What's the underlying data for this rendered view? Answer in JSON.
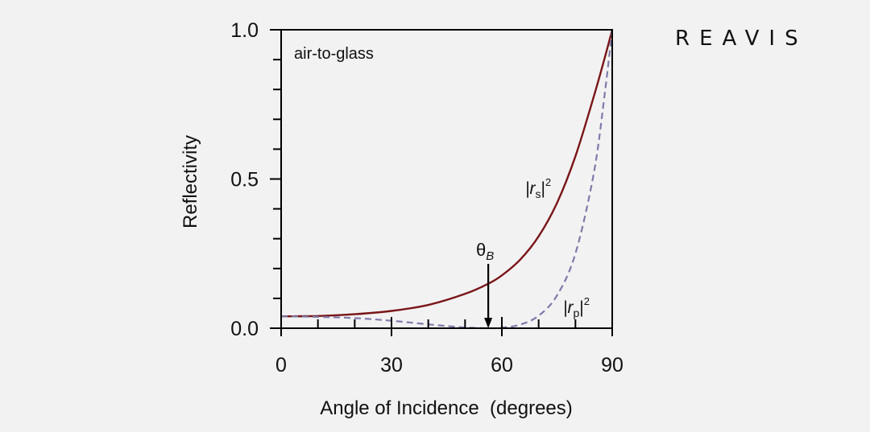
{
  "brand": {
    "name": "REAVIS"
  },
  "chart_data": {
    "type": "line",
    "title": "",
    "xlabel": "Angle of Incidence  (degrees)",
    "ylabel": "Reflectivity",
    "xlim": [
      0,
      90
    ],
    "ylim": [
      0,
      1
    ],
    "x_ticks": [
      0,
      30,
      60,
      90
    ],
    "x_tick_labels": [
      "0",
      "30",
      "60",
      "90"
    ],
    "y_ticks": [
      0,
      0.5,
      1
    ],
    "y_tick_labels": [
      "0.0",
      "0.5",
      "1.0"
    ],
    "grid": false,
    "annotation_text": "air-to-glass",
    "brewster_label": "θ",
    "brewster_subscript": "B",
    "brewster_angle": 56.3,
    "series": [
      {
        "name": "|rs|²",
        "label_main": "|r",
        "label_sub": "s",
        "label_tail": "|",
        "label_sup": "2",
        "color": "#7a1518",
        "style": "solid",
        "x": [
          0,
          10,
          20,
          30,
          40,
          50,
          56.3,
          60,
          65,
          70,
          75,
          80,
          85,
          88,
          90
        ],
        "y": [
          0.04,
          0.041,
          0.047,
          0.058,
          0.078,
          0.115,
          0.149,
          0.177,
          0.23,
          0.308,
          0.42,
          0.576,
          0.777,
          0.908,
          1.0
        ]
      },
      {
        "name": "|rp|²",
        "label_main": "|r",
        "label_sub": "p",
        "label_tail": "|",
        "label_sup": "2",
        "color": "#7f7aaa",
        "style": "dashed",
        "x": [
          0,
          10,
          20,
          30,
          40,
          50,
          56.3,
          60,
          65,
          70,
          75,
          80,
          85,
          88,
          90
        ],
        "y": [
          0.04,
          0.038,
          0.034,
          0.025,
          0.013,
          0.0025,
          0.0,
          0.0016,
          0.012,
          0.042,
          0.11,
          0.25,
          0.52,
          0.79,
          1.0
        ]
      }
    ]
  }
}
